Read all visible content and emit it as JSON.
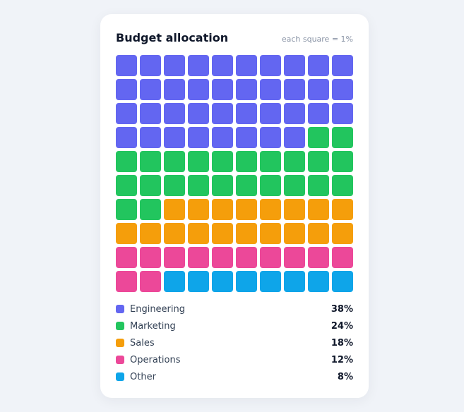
{
  "card": {
    "title": "Budget allocation",
    "note": "each square = 1%"
  },
  "chart_data": {
    "type": "waffle",
    "title": "Budget allocation",
    "unit_note": "each square = 1%",
    "grid": {
      "rows": 10,
      "cols": 10
    },
    "categories": [
      "Engineering",
      "Marketing",
      "Sales",
      "Operations",
      "Other"
    ],
    "values": [
      38,
      24,
      18,
      12,
      8
    ],
    "value_labels": [
      "38%",
      "24%",
      "18%",
      "12%",
      "8%"
    ],
    "colors": [
      "#6366f1",
      "#22c55e",
      "#f59e0b",
      "#ec4899",
      "#0ea5e9"
    ],
    "legend_placement": "bottom"
  }
}
